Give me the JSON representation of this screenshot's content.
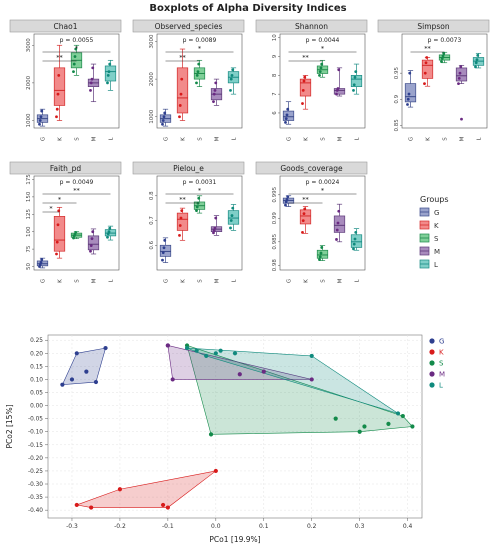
{
  "figure": {
    "title": "Boxplots of Alpha Diversity Indices",
    "group_colors": {
      "G": {
        "fill": "#9aa3cc",
        "line": "#3b4a8a",
        "dot": "#2e3f8f"
      },
      "K": {
        "fill": "#f28a8a",
        "line": "#d42a2a",
        "dot": "#d81b1b"
      },
      "S": {
        "fill": "#7fcf98",
        "line": "#1f8a4c",
        "dot": "#138a4a"
      },
      "M": {
        "fill": "#a88bbd",
        "line": "#5e3a7a",
        "dot": "#6a2a82"
      },
      "L": {
        "fill": "#7fcfc8",
        "line": "#1a8c84",
        "dot": "#0f8a7d"
      }
    }
  },
  "legend": {
    "title": "Groups",
    "items": [
      "G",
      "K",
      "S",
      "M",
      "L"
    ]
  },
  "chart_data": [
    {
      "type": "box",
      "title": "Chao1",
      "categories": [
        "G",
        "K",
        "S",
        "M",
        "L"
      ],
      "ylim": [
        800,
        3300
      ],
      "yticks": [
        1000,
        2000,
        3000
      ],
      "stats": [
        {
          "group": "G",
          "min": 850,
          "q1": 950,
          "median": 1050,
          "q3": 1150,
          "max": 1300
        },
        {
          "group": "K",
          "min": 1000,
          "q1": 1400,
          "median": 1800,
          "q3": 2400,
          "max": 3000
        },
        {
          "group": "S",
          "min": 2200,
          "q1": 2400,
          "median": 2600,
          "q3": 2800,
          "max": 3000
        },
        {
          "group": "M",
          "min": 1500,
          "q1": 1900,
          "median": 2000,
          "q3": 2100,
          "max": 2500
        },
        {
          "group": "L",
          "min": 1800,
          "q1": 2050,
          "median": 2300,
          "q3": 2450,
          "max": 2600
        }
      ],
      "points": {
        "G": [
          900,
          1000,
          1100,
          1250
        ],
        "K": [
          1100,
          1300,
          1700,
          2200
        ],
        "S": [
          2300,
          2500,
          2700,
          2900
        ],
        "M": [
          1800,
          2000,
          2100,
          2400
        ],
        "L": [
          2000,
          2200,
          2300,
          2500
        ]
      },
      "annotations": [
        {
          "text": "p = 0.0055",
          "type": "pvalue"
        },
        {
          "text": "*",
          "from": "G",
          "to": "L"
        },
        {
          "text": "**",
          "from": "G",
          "to": "S"
        }
      ]
    },
    {
      "type": "box",
      "title": "Observed_species",
      "categories": [
        "G",
        "K",
        "S",
        "M",
        "L"
      ],
      "ylim": [
        700,
        3200
      ],
      "yticks": [
        1000,
        2000,
        3000
      ],
      "stats": [
        {
          "group": "G",
          "min": 750,
          "q1": 850,
          "median": 950,
          "q3": 1050,
          "max": 1200
        },
        {
          "group": "K",
          "min": 900,
          "q1": 1100,
          "median": 1500,
          "q3": 2300,
          "max": 2800
        },
        {
          "group": "S",
          "min": 1800,
          "q1": 2000,
          "median": 2150,
          "q3": 2300,
          "max": 2500
        },
        {
          "group": "M",
          "min": 1300,
          "q1": 1450,
          "median": 1600,
          "q3": 1750,
          "max": 2000
        },
        {
          "group": "L",
          "min": 1600,
          "q1": 1900,
          "median": 2050,
          "q3": 2200,
          "max": 2300
        }
      ],
      "points": {
        "G": [
          800,
          900,
          1000,
          1100
        ],
        "K": [
          1000,
          1300,
          1600,
          2000
        ],
        "S": [
          1900,
          2100,
          2200,
          2400
        ],
        "M": [
          1400,
          1600,
          1700,
          1900
        ],
        "L": [
          1700,
          2000,
          2100,
          2250
        ]
      },
      "annotations": [
        {
          "text": "p = 0.0089",
          "type": "pvalue"
        },
        {
          "text": "*",
          "from": "G",
          "to": "L"
        },
        {
          "text": "**",
          "from": "G",
          "to": "S"
        }
      ]
    },
    {
      "type": "box",
      "title": "Shannon",
      "categories": [
        "G",
        "K",
        "S",
        "M",
        "L"
      ],
      "ylim": [
        5.2,
        10.2
      ],
      "yticks": [
        6,
        7,
        8,
        9,
        10
      ],
      "stats": [
        {
          "group": "G",
          "min": 5.4,
          "q1": 5.6,
          "median": 5.8,
          "q3": 6.1,
          "max": 6.6
        },
        {
          "group": "K",
          "min": 6.2,
          "q1": 6.9,
          "median": 7.6,
          "q3": 7.8,
          "max": 8.0
        },
        {
          "group": "S",
          "min": 7.9,
          "q1": 8.1,
          "median": 8.3,
          "q3": 8.5,
          "max": 8.8
        },
        {
          "group": "M",
          "min": 6.9,
          "q1": 7.0,
          "median": 7.2,
          "q3": 7.3,
          "max": 8.4
        },
        {
          "group": "L",
          "min": 7.0,
          "q1": 7.4,
          "median": 7.8,
          "q3": 8.0,
          "max": 8.6
        }
      ],
      "points": {
        "G": [
          5.5,
          5.7,
          5.9,
          6.2
        ],
        "K": [
          6.5,
          7.2,
          7.7,
          7.9
        ],
        "S": [
          8.0,
          8.2,
          8.4,
          8.6
        ],
        "M": [
          7.0,
          7.2,
          7.3,
          8.3
        ],
        "L": [
          7.2,
          7.5,
          7.9,
          8.2
        ]
      },
      "annotations": [
        {
          "text": "p = 0.0044",
          "type": "pvalue"
        },
        {
          "text": "*",
          "from": "G",
          "to": "L"
        },
        {
          "text": "**",
          "from": "G",
          "to": "S"
        }
      ]
    },
    {
      "type": "box",
      "title": "Simpson",
      "categories": [
        "G",
        "K",
        "S",
        "M",
        "L"
      ],
      "ylim": [
        0.845,
        1.025
      ],
      "yticks": [
        0.85,
        0.9,
        0.95
      ],
      "stats": [
        {
          "group": "G",
          "min": 0.885,
          "q1": 0.895,
          "median": 0.905,
          "q3": 0.93,
          "max": 0.955
        },
        {
          "group": "K",
          "min": 0.925,
          "q1": 0.94,
          "median": 0.965,
          "q3": 0.975,
          "max": 0.98
        },
        {
          "group": "S",
          "min": 0.97,
          "q1": 0.975,
          "median": 0.98,
          "q3": 0.985,
          "max": 0.99
        },
        {
          "group": "M",
          "min": 0.93,
          "q1": 0.935,
          "median": 0.945,
          "q3": 0.96,
          "max": 0.965
        },
        {
          "group": "L",
          "min": 0.96,
          "q1": 0.965,
          "median": 0.973,
          "q3": 0.98,
          "max": 0.988
        }
      ],
      "points": {
        "G": [
          0.89,
          0.9,
          0.91,
          0.95
        ],
        "K": [
          0.93,
          0.95,
          0.97,
          0.98
        ],
        "S": [
          0.972,
          0.978,
          0.983,
          0.988
        ],
        "M": [
          0.93,
          0.94,
          0.95,
          0.962,
          0.862
        ],
        "L": [
          0.962,
          0.97,
          0.976,
          0.984
        ]
      },
      "annotations": [
        {
          "text": "p = 0.0073",
          "type": "pvalue"
        },
        {
          "text": "**",
          "from": "G",
          "to": "S"
        }
      ]
    },
    {
      "type": "box",
      "title": "Faith_pd",
      "categories": [
        "G",
        "K",
        "S",
        "M",
        "L"
      ],
      "ylim": [
        45,
        180
      ],
      "yticks": [
        50,
        75,
        100,
        125,
        150,
        175
      ],
      "stats": [
        {
          "group": "G",
          "min": 48,
          "q1": 51,
          "median": 54,
          "q3": 58,
          "max": 62
        },
        {
          "group": "K",
          "min": 62,
          "q1": 72,
          "median": 88,
          "q3": 122,
          "max": 135
        },
        {
          "group": "S",
          "min": 90,
          "q1": 92,
          "median": 95,
          "q3": 98,
          "max": 100
        },
        {
          "group": "M",
          "min": 68,
          "q1": 74,
          "median": 82,
          "q3": 94,
          "max": 104
        },
        {
          "group": "L",
          "min": 88,
          "q1": 94,
          "median": 98,
          "q3": 103,
          "max": 108
        }
      ],
      "points": {
        "G": [
          50,
          53,
          56,
          60
        ],
        "K": [
          68,
          85,
          110,
          130
        ],
        "S": [
          91,
          94,
          96,
          99
        ],
        "M": [
          72,
          80,
          90,
          100
        ],
        "L": [
          92,
          97,
          100,
          105
        ]
      },
      "annotations": [
        {
          "text": "p = 0.0049",
          "type": "pvalue"
        },
        {
          "text": "**",
          "from": "G",
          "to": "L"
        },
        {
          "text": "*",
          "from": "G",
          "to": "S"
        },
        {
          "text": "*",
          "from": "G",
          "to": "K"
        }
      ]
    },
    {
      "type": "box",
      "title": "Pielou_e",
      "categories": [
        "G",
        "K",
        "S",
        "M",
        "L"
      ],
      "ylim": [
        0.5,
        0.88
      ],
      "yticks": [
        0.6,
        0.7,
        0.8
      ],
      "stats": [
        {
          "group": "G",
          "min": 0.53,
          "q1": 0.555,
          "median": 0.575,
          "q3": 0.6,
          "max": 0.63
        },
        {
          "group": "K",
          "min": 0.62,
          "q1": 0.66,
          "median": 0.705,
          "q3": 0.73,
          "max": 0.75
        },
        {
          "group": "S",
          "min": 0.73,
          "q1": 0.745,
          "median": 0.76,
          "q3": 0.775,
          "max": 0.8
        },
        {
          "group": "M",
          "min": 0.64,
          "q1": 0.655,
          "median": 0.665,
          "q3": 0.675,
          "max": 0.72
        },
        {
          "group": "L",
          "min": 0.66,
          "q1": 0.685,
          "median": 0.71,
          "q3": 0.74,
          "max": 0.765
        }
      ],
      "points": {
        "G": [
          0.54,
          0.57,
          0.59,
          0.62
        ],
        "K": [
          0.64,
          0.68,
          0.71,
          0.74
        ],
        "S": [
          0.74,
          0.755,
          0.77,
          0.79
        ],
        "M": [
          0.65,
          0.66,
          0.67,
          0.71
        ],
        "L": [
          0.67,
          0.7,
          0.72,
          0.75
        ]
      },
      "annotations": [
        {
          "text": "p = 0.0031",
          "type": "pvalue"
        },
        {
          "text": "*",
          "from": "G",
          "to": "L"
        },
        {
          "text": "**",
          "from": "G",
          "to": "S"
        }
      ]
    },
    {
      "type": "box",
      "title": "Goods_coverage",
      "categories": [
        "G",
        "K",
        "S",
        "M",
        "L"
      ],
      "ylim": [
        0.979,
        0.999
      ],
      "yticks": [
        0.98,
        0.985,
        0.99,
        0.995
      ],
      "stats": [
        {
          "group": "G",
          "min": 0.9925,
          "q1": 0.9932,
          "median": 0.9938,
          "q3": 0.9943,
          "max": 0.9948
        },
        {
          "group": "K",
          "min": 0.9868,
          "q1": 0.9888,
          "median": 0.9905,
          "q3": 0.9918,
          "max": 0.9925
        },
        {
          "group": "S",
          "min": 0.981,
          "q1": 0.9815,
          "median": 0.9822,
          "q3": 0.9832,
          "max": 0.9842
        },
        {
          "group": "M",
          "min": 0.985,
          "q1": 0.987,
          "median": 0.9885,
          "q3": 0.9905,
          "max": 0.993
        },
        {
          "group": "L",
          "min": 0.9832,
          "q1": 0.9838,
          "median": 0.985,
          "q3": 0.9865,
          "max": 0.9878
        }
      ],
      "points": {
        "G": [
          0.9928,
          0.9935,
          0.994,
          0.9946
        ],
        "K": [
          0.987,
          0.9895,
          0.991,
          0.992
        ],
        "S": [
          0.9812,
          0.9818,
          0.9826,
          0.9838
        ],
        "M": [
          0.9855,
          0.9875,
          0.989,
          0.9915
        ],
        "L": [
          0.9835,
          0.9845,
          0.9856,
          0.987
        ]
      },
      "annotations": [
        {
          "text": "p = 0.0024",
          "type": "pvalue"
        },
        {
          "text": "*",
          "from": "G",
          "to": "L"
        },
        {
          "text": "**",
          "from": "G",
          "to": "S"
        }
      ]
    },
    {
      "type": "scatter",
      "xlabel": "PCo1 [19.9%]",
      "ylabel": "PCo2 [15%]",
      "xlim": [
        -0.35,
        0.43
      ],
      "ylim": [
        -0.43,
        0.27
      ],
      "xticks": [
        -0.3,
        -0.2,
        -0.1,
        0.0,
        0.1,
        0.2,
        0.3,
        0.4
      ],
      "yticks": [
        -0.4,
        -0.35,
        -0.3,
        -0.25,
        -0.2,
        -0.15,
        -0.1,
        -0.05,
        0.0,
        0.05,
        0.1,
        0.15,
        0.2,
        0.25
      ],
      "grid": true,
      "legend_position": "right",
      "series": [
        {
          "name": "G",
          "x": [
            -0.32,
            -0.29,
            -0.27,
            -0.25,
            -0.23,
            -0.3
          ],
          "y": [
            0.08,
            0.2,
            0.13,
            0.09,
            0.22,
            0.1
          ]
        },
        {
          "name": "K",
          "x": [
            -0.29,
            -0.26,
            -0.2,
            -0.11,
            -0.1,
            0.0
          ],
          "y": [
            -0.38,
            -0.39,
            -0.32,
            -0.38,
            -0.39,
            -0.25
          ]
        },
        {
          "name": "S",
          "x": [
            -0.06,
            0.25,
            0.31,
            0.3,
            0.39,
            0.41,
            -0.01,
            0.36
          ],
          "y": [
            0.23,
            -0.05,
            -0.08,
            -0.1,
            -0.04,
            -0.08,
            -0.11,
            -0.07
          ]
        },
        {
          "name": "M",
          "x": [
            -0.1,
            -0.09,
            0.1,
            0.2,
            0.05,
            -0.1
          ],
          "y": [
            0.23,
            0.1,
            0.13,
            0.1,
            0.12,
            0.23
          ]
        },
        {
          "name": "L",
          "x": [
            -0.06,
            -0.04,
            0.0,
            0.04,
            0.2,
            0.38,
            -0.02,
            0.01
          ],
          "y": [
            0.22,
            0.21,
            0.2,
            0.2,
            0.19,
            -0.03,
            0.19,
            0.21
          ]
        }
      ]
    }
  ]
}
